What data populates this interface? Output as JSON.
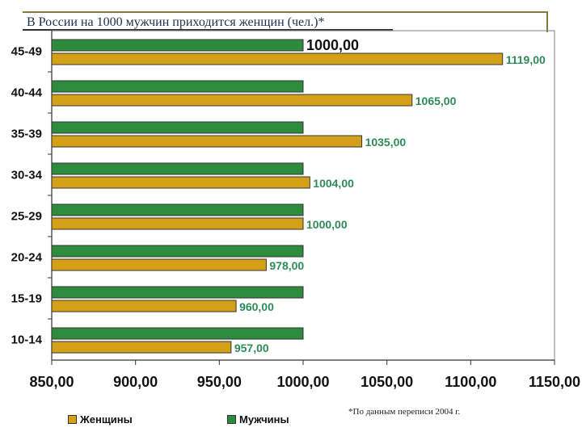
{
  "title": "В России на 1000 мужчин приходится женщин (чел.)*",
  "footnote": "*По данным переписи 2004 г.",
  "colors": {
    "women": "#D4A017",
    "men": "#2E8B3E",
    "women_label": "#2E8B57",
    "men_label": "#111111"
  },
  "chart_data": {
    "type": "bar",
    "orientation": "horizontal",
    "categories": [
      "45-49",
      "40-44",
      "35-39",
      "30-34",
      "25-29",
      "20-24",
      "15-19",
      "10-14"
    ],
    "series": [
      {
        "name": "Мужчины",
        "values": [
          1000,
          1000,
          1000,
          1000,
          1000,
          1000,
          1000,
          1000
        ],
        "labels": [
          "1000,00",
          "",
          "",
          "",
          "",
          "",
          "",
          ""
        ]
      },
      {
        "name": "Женщины",
        "values": [
          1119,
          1065,
          1035,
          1004,
          1000,
          978,
          960,
          957
        ],
        "labels": [
          "1119,00",
          "1065,00",
          "1035,00",
          "1004,00",
          "1000,00",
          "978,00",
          "960,00",
          "957,00"
        ]
      }
    ],
    "xlim": [
      850,
      1150
    ],
    "x_ticks": [
      "850,00",
      "900,00",
      "950,00",
      "1000,00",
      "1050,00",
      "1100,00",
      "1150,00"
    ],
    "legend": [
      "Женщины",
      "Мужчины"
    ],
    "legend_position": "bottom",
    "grid": false
  }
}
